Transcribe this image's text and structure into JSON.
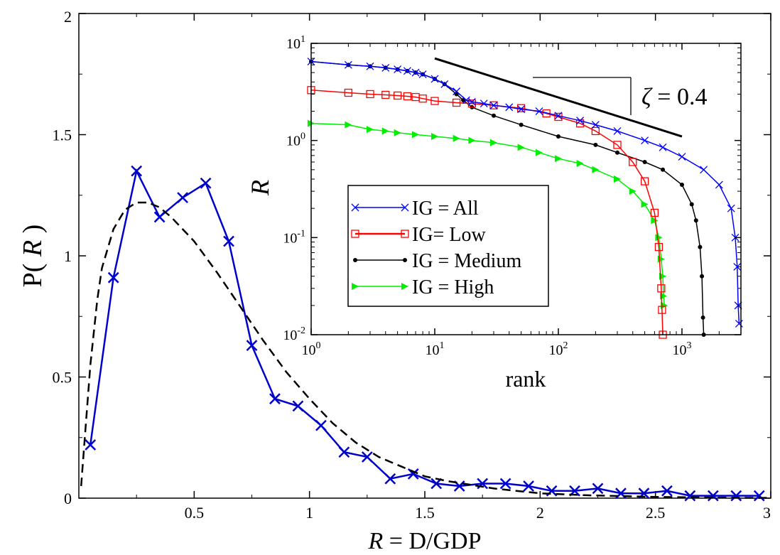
{
  "chart_data": [
    {
      "type": "line",
      "xlabel_var": "R",
      "xlabel_rest": " = D/GDP",
      "ylabel_prefix": "P( ",
      "ylabel_var": "R",
      "ylabel_suffix": " )",
      "xlim": [
        0,
        3
      ],
      "ylim": [
        0,
        2
      ],
      "xticks": [
        0.5,
        1,
        1.5,
        2,
        2.5,
        3
      ],
      "xtick_labels": [
        "0.5",
        "1",
        "1.5",
        "2",
        "2.5",
        "3"
      ],
      "yticks": [
        0,
        0.5,
        1,
        1.5,
        2
      ],
      "ytick_labels": [
        "0",
        "0.5",
        "1",
        "1.5",
        "2"
      ],
      "series": [
        {
          "style": "solid-cross",
          "color": "#0000cc",
          "x": [
            0.05,
            0.15,
            0.25,
            0.35,
            0.45,
            0.55,
            0.65,
            0.75,
            0.85,
            0.95,
            1.05,
            1.15,
            1.25,
            1.35,
            1.45,
            1.55,
            1.65,
            1.75,
            1.85,
            1.95,
            2.05,
            2.15,
            2.25,
            2.35,
            2.45,
            2.55,
            2.65,
            2.75,
            2.85,
            2.95
          ],
          "y": [
            0.22,
            0.91,
            1.35,
            1.16,
            1.24,
            1.3,
            1.06,
            0.63,
            0.41,
            0.38,
            0.3,
            0.19,
            0.17,
            0.08,
            0.1,
            0.06,
            0.05,
            0.06,
            0.06,
            0.05,
            0.03,
            0.03,
            0.04,
            0.02,
            0.02,
            0.03,
            0.01,
            0.01,
            0.01,
            0.01
          ]
        },
        {
          "style": "dashed-fit",
          "color": "#000000",
          "x": [
            0.01,
            0.03,
            0.05,
            0.08,
            0.1,
            0.15,
            0.2,
            0.25,
            0.3,
            0.35,
            0.4,
            0.5,
            0.6,
            0.7,
            0.8,
            0.9,
            1.0,
            1.1,
            1.2,
            1.3,
            1.4,
            1.5,
            1.6,
            1.8,
            2.0,
            2.2,
            2.5,
            2.8,
            3.0
          ],
          "y": [
            0.05,
            0.3,
            0.55,
            0.82,
            0.95,
            1.11,
            1.19,
            1.22,
            1.22,
            1.2,
            1.16,
            1.06,
            0.93,
            0.79,
            0.65,
            0.52,
            0.41,
            0.31,
            0.23,
            0.17,
            0.13,
            0.09,
            0.07,
            0.04,
            0.02,
            0.012,
            0.005,
            0.002,
            0.001
          ]
        }
      ]
    },
    {
      "type": "line",
      "scale": "log-log",
      "xlabel": "rank",
      "ylabel": "R",
      "xlim": [
        1,
        3000
      ],
      "ylim": [
        0.01,
        10
      ],
      "xticks": [
        1,
        10,
        100,
        1000
      ],
      "xtick_labels": [
        {
          "base": "10",
          "exp": "0"
        },
        {
          "base": "10",
          "exp": "1"
        },
        {
          "base": "10",
          "exp": "2"
        },
        {
          "base": "10",
          "exp": "3"
        }
      ],
      "yticks": [
        0.01,
        0.1,
        1,
        10
      ],
      "ytick_labels": [
        {
          "base": "10",
          "exp": "-2"
        },
        {
          "base": "10",
          "exp": "-1"
        },
        {
          "base": "10",
          "exp": "0"
        },
        {
          "base": "10",
          "exp": "1"
        }
      ],
      "annotation": {
        "greek": "ζ",
        "rest": " = 0.4",
        "slope_line": {
          "x": [
            10,
            1000
          ],
          "y": [
            7.0,
            1.1
          ]
        }
      },
      "legend_position": "lower-left",
      "series": [
        {
          "name": "IG = All",
          "color": "#0000ff",
          "marker": "x",
          "x": [
            1,
            2,
            3,
            4,
            5,
            6,
            7,
            8,
            10,
            12,
            15,
            18,
            20,
            25,
            30,
            40,
            50,
            70,
            100,
            150,
            200,
            300,
            500,
            700,
            1000,
            1500,
            2000,
            2500,
            2700,
            2800,
            2850,
            2900
          ],
          "y": [
            6.5,
            6.0,
            5.8,
            5.6,
            5.4,
            5.2,
            5.0,
            4.8,
            4.3,
            3.8,
            3.2,
            2.6,
            2.5,
            2.4,
            2.3,
            2.2,
            2.1,
            2.0,
            1.8,
            1.6,
            1.45,
            1.25,
            1.0,
            0.85,
            0.68,
            0.5,
            0.35,
            0.2,
            0.1,
            0.05,
            0.02,
            0.013
          ]
        },
        {
          "name": "IG= Low",
          "color": "#ff0000",
          "marker": "square",
          "x": [
            1,
            2,
            3,
            4,
            5,
            6,
            7,
            8,
            10,
            15,
            20,
            30,
            50,
            80,
            100,
            150,
            200,
            300,
            400,
            500,
            600,
            650,
            680,
            690,
            700
          ],
          "y": [
            3.3,
            3.1,
            3.0,
            2.95,
            2.9,
            2.85,
            2.8,
            2.7,
            2.55,
            2.45,
            2.4,
            2.3,
            2.15,
            1.9,
            1.75,
            1.5,
            1.25,
            0.9,
            0.6,
            0.38,
            0.18,
            0.08,
            0.03,
            0.018,
            0.01
          ]
        },
        {
          "name": "IG = Medium",
          "color": "#000000",
          "marker": "dot",
          "x": [
            1,
            2,
            3,
            4,
            5,
            6,
            7,
            8,
            10,
            12,
            15,
            17,
            20,
            30,
            50,
            100,
            200,
            300,
            500,
            700,
            1000,
            1200,
            1300,
            1400,
            1450,
            1480,
            1500
          ],
          "y": [
            6.5,
            6.0,
            5.8,
            5.6,
            5.4,
            5.2,
            5.0,
            4.8,
            4.3,
            3.8,
            3.0,
            2.6,
            2.2,
            1.8,
            1.45,
            1.1,
            0.9,
            0.75,
            0.6,
            0.5,
            0.35,
            0.22,
            0.15,
            0.08,
            0.04,
            0.015,
            0.01
          ]
        },
        {
          "name": "IG = High",
          "color": "#00ee00",
          "marker": "triangle-right",
          "x": [
            1,
            2,
            3,
            4,
            5,
            7,
            10,
            15,
            20,
            30,
            50,
            70,
            100,
            150,
            200,
            300,
            400,
            500,
            600,
            650,
            680,
            700,
            710,
            720
          ],
          "y": [
            1.5,
            1.45,
            1.3,
            1.25,
            1.2,
            1.15,
            1.1,
            1.05,
            1.0,
            0.95,
            0.85,
            0.75,
            0.65,
            0.58,
            0.5,
            0.4,
            0.3,
            0.22,
            0.15,
            0.1,
            0.06,
            0.04,
            0.025,
            0.02
          ]
        }
      ]
    }
  ]
}
